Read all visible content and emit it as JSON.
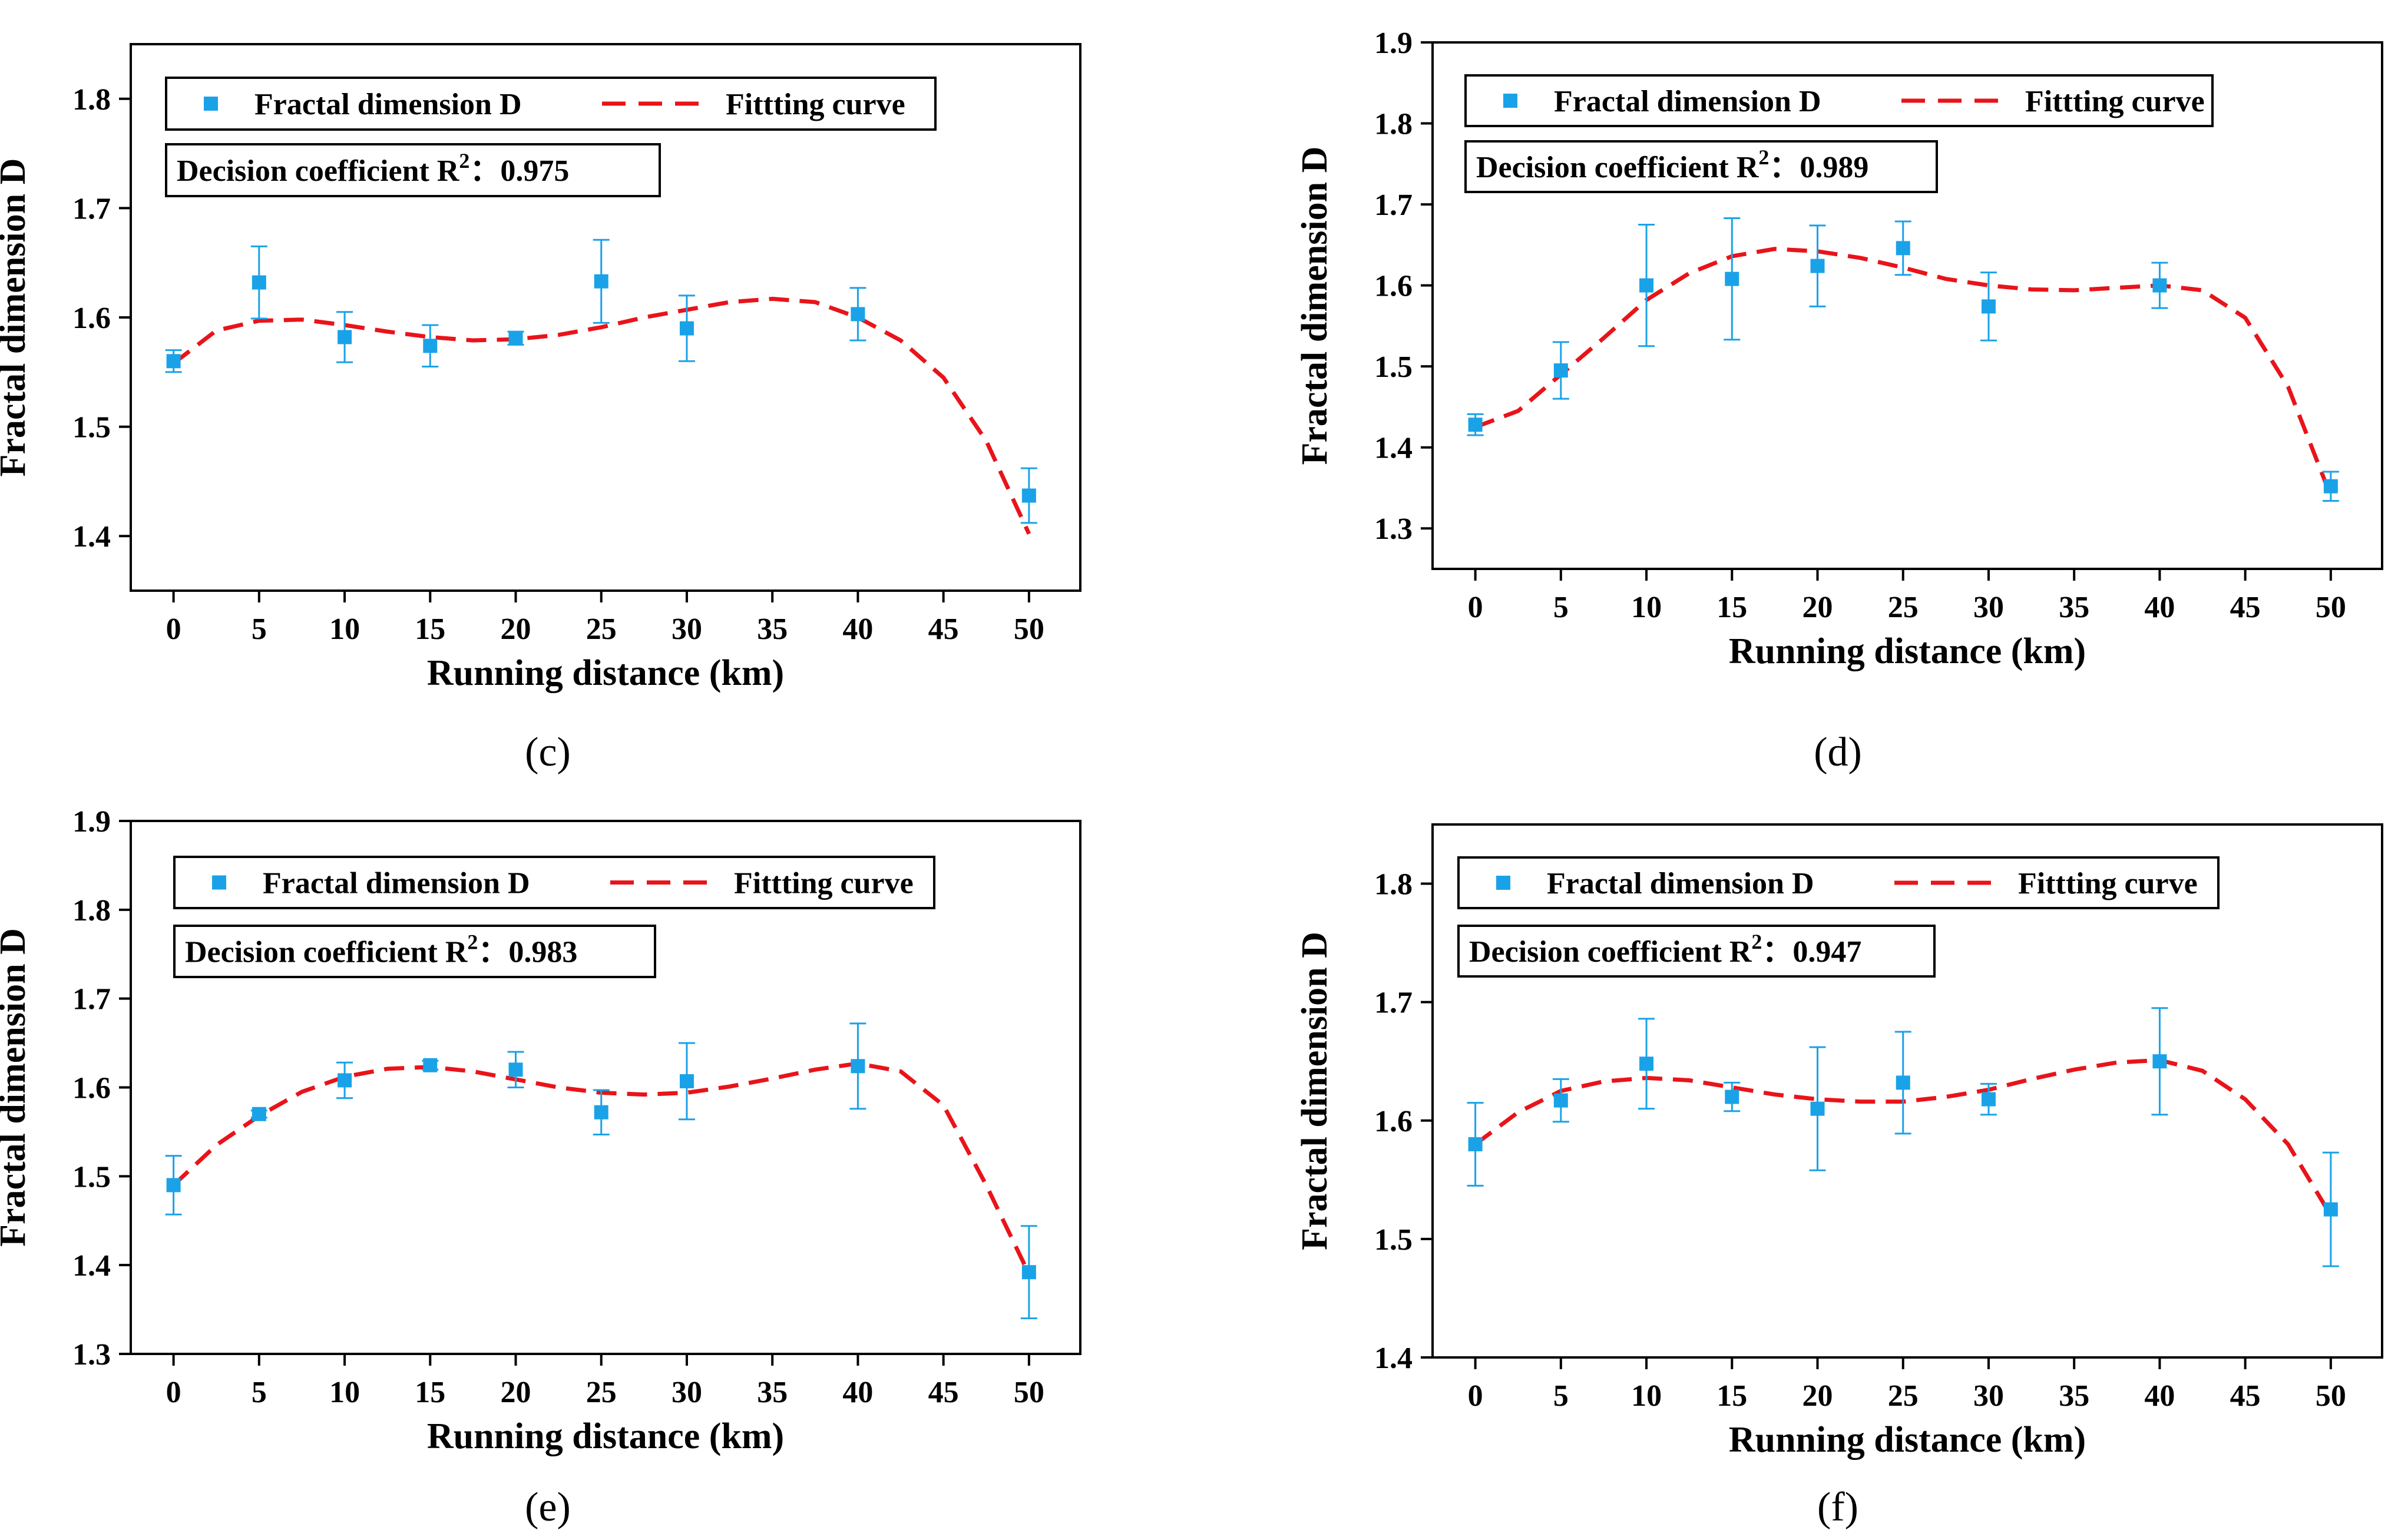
{
  "figure": {
    "colors": {
      "marker": "#1aa2e8",
      "curve": "#e8141a",
      "axis": "#000000"
    },
    "legend_marker_icon": "square-marker",
    "legend_line_icon": "dashed-line"
  },
  "chart_data": [
    {
      "panel_label": "(c)",
      "type": "scatter",
      "xlabel": "Running distance (km)",
      "ylabel": "Fractal dimension D",
      "xlim": [
        -2.5,
        53
      ],
      "ylim": [
        1.35,
        1.85
      ],
      "xticks": [
        0,
        5,
        10,
        15,
        20,
        25,
        30,
        35,
        40,
        45,
        50
      ],
      "yticks": [
        1.4,
        1.5,
        1.6,
        1.7,
        1.8
      ],
      "legend_points": "Fractal dimension D",
      "legend_curve": "Fittting curve",
      "r2_prefix": "Decision coefficient R",
      "r2_sup": "2",
      "r2_sep": "：",
      "r2_value": "0.975",
      "points": [
        {
          "x": 0,
          "y": 1.56,
          "err": 0.01
        },
        {
          "x": 5,
          "y": 1.632,
          "err": 0.033
        },
        {
          "x": 10,
          "y": 1.582,
          "err": 0.023
        },
        {
          "x": 15,
          "y": 1.574,
          "err": 0.019
        },
        {
          "x": 20,
          "y": 1.581,
          "err": 0.006
        },
        {
          "x": 25,
          "y": 1.633,
          "err": 0.038
        },
        {
          "x": 30,
          "y": 1.59,
          "err": 0.03
        },
        {
          "x": 40,
          "y": 1.603,
          "err": 0.024
        },
        {
          "x": 50,
          "y": 1.437,
          "err": 0.025
        }
      ],
      "curve": [
        [
          0,
          1.558
        ],
        [
          2.5,
          1.588
        ],
        [
          5,
          1.597
        ],
        [
          7.5,
          1.598
        ],
        [
          10,
          1.593
        ],
        [
          12.5,
          1.587
        ],
        [
          15,
          1.582
        ],
        [
          17.5,
          1.579
        ],
        [
          20,
          1.58
        ],
        [
          22.5,
          1.584
        ],
        [
          25,
          1.591
        ],
        [
          27.5,
          1.6
        ],
        [
          30,
          1.607
        ],
        [
          32.5,
          1.614
        ],
        [
          35,
          1.617
        ],
        [
          37.5,
          1.614
        ],
        [
          40,
          1.6
        ],
        [
          42.5,
          1.579
        ],
        [
          45,
          1.545
        ],
        [
          47.5,
          1.487
        ],
        [
          50,
          1.402
        ]
      ]
    },
    {
      "panel_label": "(d)",
      "type": "scatter",
      "xlabel": "Running distance (km)",
      "ylabel": "Fractal dimension D",
      "xlim": [
        -2.5,
        53
      ],
      "ylim": [
        1.25,
        1.9
      ],
      "xticks": [
        0,
        5,
        10,
        15,
        20,
        25,
        30,
        35,
        40,
        45,
        50
      ],
      "yticks": [
        1.3,
        1.4,
        1.5,
        1.6,
        1.7,
        1.8,
        1.9
      ],
      "legend_points": "Fractal dimension D",
      "legend_curve": "Fittting curve",
      "r2_prefix": "Decision coefficient R",
      "r2_sup": "2",
      "r2_sep": "：",
      "r2_value": "0.989",
      "points": [
        {
          "x": 0,
          "y": 1.428,
          "err": 0.013
        },
        {
          "x": 5,
          "y": 1.495,
          "err": 0.035
        },
        {
          "x": 10,
          "y": 1.6,
          "err": 0.075
        },
        {
          "x": 15,
          "y": 1.608,
          "err": 0.075
        },
        {
          "x": 20,
          "y": 1.624,
          "err": 0.05
        },
        {
          "x": 25,
          "y": 1.646,
          "err": 0.033
        },
        {
          "x": 30,
          "y": 1.574,
          "err": 0.042
        },
        {
          "x": 40,
          "y": 1.6,
          "err": 0.028
        },
        {
          "x": 50,
          "y": 1.352,
          "err": 0.018
        }
      ],
      "curve": [
        [
          0,
          1.425
        ],
        [
          2.5,
          1.445
        ],
        [
          5,
          1.49
        ],
        [
          7.5,
          1.535
        ],
        [
          10,
          1.582
        ],
        [
          12.5,
          1.615
        ],
        [
          15,
          1.636
        ],
        [
          17.5,
          1.645
        ],
        [
          20,
          1.642
        ],
        [
          22.5,
          1.634
        ],
        [
          25,
          1.622
        ],
        [
          27.5,
          1.608
        ],
        [
          30,
          1.6
        ],
        [
          32.5,
          1.595
        ],
        [
          35,
          1.594
        ],
        [
          37.5,
          1.597
        ],
        [
          40,
          1.6
        ],
        [
          42.5,
          1.594
        ],
        [
          45,
          1.56
        ],
        [
          47.5,
          1.475
        ],
        [
          50,
          1.34
        ]
      ]
    },
    {
      "panel_label": "(e)",
      "type": "scatter",
      "xlabel": "Running distance (km)",
      "ylabel": "Fractal dimension D",
      "xlim": [
        -2.5,
        53
      ],
      "ylim": [
        1.3,
        1.9
      ],
      "xticks": [
        0,
        5,
        10,
        15,
        20,
        25,
        30,
        35,
        40,
        45,
        50
      ],
      "yticks": [
        1.3,
        1.4,
        1.5,
        1.6,
        1.7,
        1.8,
        1.9
      ],
      "legend_points": "Fractal dimension D",
      "legend_curve": "Fittting curve",
      "r2_prefix": "Decision coefficient R",
      "r2_sup": "2",
      "r2_sep": "：",
      "r2_value": "0.983",
      "points": [
        {
          "x": 0,
          "y": 1.49,
          "err": 0.033
        },
        {
          "x": 5,
          "y": 1.57,
          "err": 0.004
        },
        {
          "x": 10,
          "y": 1.608,
          "err": 0.02
        },
        {
          "x": 15,
          "y": 1.625,
          "err": 0.005
        },
        {
          "x": 20,
          "y": 1.62,
          "err": 0.02
        },
        {
          "x": 25,
          "y": 1.572,
          "err": 0.025
        },
        {
          "x": 30,
          "y": 1.607,
          "err": 0.043
        },
        {
          "x": 40,
          "y": 1.624,
          "err": 0.048
        },
        {
          "x": 50,
          "y": 1.392,
          "err": 0.052
        }
      ],
      "curve": [
        [
          0,
          1.49
        ],
        [
          2.5,
          1.535
        ],
        [
          5,
          1.568
        ],
        [
          7.5,
          1.595
        ],
        [
          10,
          1.612
        ],
        [
          12.5,
          1.621
        ],
        [
          15,
          1.623
        ],
        [
          17.5,
          1.618
        ],
        [
          20,
          1.609
        ],
        [
          22.5,
          1.6
        ],
        [
          25,
          1.594
        ],
        [
          27.5,
          1.592
        ],
        [
          30,
          1.594
        ],
        [
          32.5,
          1.601
        ],
        [
          35,
          1.61
        ],
        [
          37.5,
          1.62
        ],
        [
          40,
          1.627
        ],
        [
          42.5,
          1.618
        ],
        [
          45,
          1.58
        ],
        [
          47.5,
          1.49
        ],
        [
          50,
          1.39
        ]
      ]
    },
    {
      "panel_label": "(f)",
      "type": "scatter",
      "xlabel": "Running distance (km)",
      "ylabel": "Fractal dimension D",
      "xlim": [
        -2.5,
        53
      ],
      "ylim": [
        1.4,
        1.85
      ],
      "xticks": [
        0,
        5,
        10,
        15,
        20,
        25,
        30,
        35,
        40,
        45,
        50
      ],
      "yticks": [
        1.4,
        1.5,
        1.6,
        1.7,
        1.8
      ],
      "legend_points": "Fractal dimension D",
      "legend_curve": "Fittting curve",
      "r2_prefix": "Decision coefficient R",
      "r2_sup": "2",
      "r2_sep": "：",
      "r2_value": "0.947",
      "points": [
        {
          "x": 0,
          "y": 1.58,
          "err": 0.035
        },
        {
          "x": 5,
          "y": 1.617,
          "err": 0.018
        },
        {
          "x": 10,
          "y": 1.648,
          "err": 0.038
        },
        {
          "x": 15,
          "y": 1.62,
          "err": 0.012
        },
        {
          "x": 20,
          "y": 1.61,
          "err": 0.052
        },
        {
          "x": 25,
          "y": 1.632,
          "err": 0.043
        },
        {
          "x": 30,
          "y": 1.618,
          "err": 0.013
        },
        {
          "x": 40,
          "y": 1.65,
          "err": 0.045
        },
        {
          "x": 50,
          "y": 1.525,
          "err": 0.048
        }
      ],
      "curve": [
        [
          0,
          1.58
        ],
        [
          2.5,
          1.607
        ],
        [
          5,
          1.625
        ],
        [
          7.5,
          1.633
        ],
        [
          10,
          1.636
        ],
        [
          12.5,
          1.634
        ],
        [
          15,
          1.628
        ],
        [
          17.5,
          1.622
        ],
        [
          20,
          1.618
        ],
        [
          22.5,
          1.616
        ],
        [
          25,
          1.616
        ],
        [
          27.5,
          1.62
        ],
        [
          30,
          1.626
        ],
        [
          32.5,
          1.635
        ],
        [
          35,
          1.643
        ],
        [
          37.5,
          1.649
        ],
        [
          40,
          1.651
        ],
        [
          42.5,
          1.642
        ],
        [
          45,
          1.618
        ],
        [
          47.5,
          1.58
        ],
        [
          50,
          1.52
        ]
      ]
    }
  ]
}
